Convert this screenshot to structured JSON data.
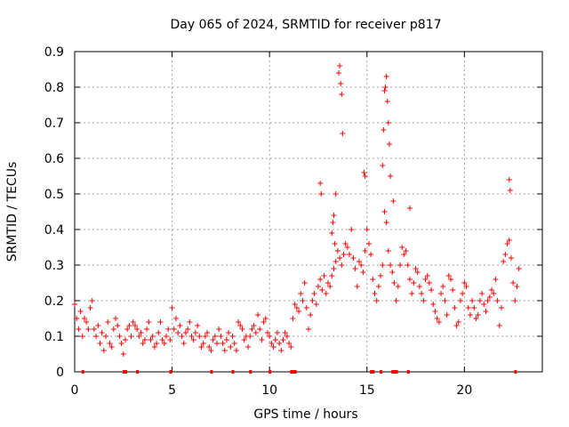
{
  "chart_data": {
    "type": "scatter",
    "title": "Day 065 of 2024, SRMTID for receiver p817",
    "xlabel": "GPS time / hours",
    "ylabel": "SRMTID / TECUs",
    "xlim": [
      0,
      24
    ],
    "ylim": [
      0,
      0.9
    ],
    "grid": true,
    "x_ticks": [
      0,
      5,
      10,
      15,
      20
    ],
    "x_tick_labels": [
      "0",
      "5",
      "10",
      "15",
      "20"
    ],
    "y_ticks": [
      0,
      0.1,
      0.2,
      0.3,
      0.4,
      0.5,
      0.6,
      0.7,
      0.8,
      0.9
    ],
    "y_tick_labels": [
      "0",
      "0.1",
      "0.2",
      "0.3",
      "0.4",
      "0.5",
      "0.6",
      "0.7",
      "0.8",
      "0.9"
    ],
    "marker": "+",
    "series": [
      {
        "name": "SRMTID",
        "color": "#ff0000",
        "x": [
          0.0,
          0.1,
          0.2,
          0.3,
          0.4,
          0.5,
          0.6,
          0.7,
          0.8,
          0.9,
          1.0,
          1.1,
          1.2,
          1.3,
          1.4,
          1.5,
          1.6,
          1.7,
          1.8,
          1.9,
          2.0,
          2.1,
          2.2,
          2.3,
          2.4,
          2.5,
          2.6,
          2.7,
          2.8,
          2.9,
          3.0,
          3.1,
          3.2,
          3.3,
          3.4,
          3.5,
          3.6,
          3.7,
          3.8,
          3.9,
          4.0,
          4.1,
          4.2,
          4.3,
          4.4,
          4.5,
          4.6,
          4.7,
          4.8,
          4.9,
          5.0,
          5.1,
          5.2,
          5.3,
          5.4,
          5.5,
          5.6,
          5.7,
          5.8,
          5.9,
          6.0,
          6.1,
          6.2,
          6.3,
          6.4,
          6.5,
          6.6,
          6.7,
          6.8,
          6.9,
          7.0,
          7.1,
          7.2,
          7.3,
          7.4,
          7.5,
          7.6,
          7.7,
          7.8,
          7.9,
          8.0,
          8.1,
          8.2,
          8.3,
          8.4,
          8.5,
          8.6,
          8.7,
          8.8,
          8.9,
          9.0,
          9.1,
          9.2,
          9.3,
          9.4,
          9.5,
          9.6,
          9.7,
          9.8,
          9.9,
          10.0,
          10.1,
          10.2,
          10.3,
          10.4,
          10.5,
          10.6,
          10.7,
          10.8,
          10.9,
          11.0,
          11.1,
          11.2,
          11.3,
          11.4,
          11.5,
          11.6,
          11.7,
          11.8,
          11.9,
          12.0,
          12.1,
          12.2,
          12.3,
          12.4,
          12.5,
          12.6,
          12.7,
          12.8,
          12.9,
          13.0,
          13.1,
          13.2,
          13.3,
          13.4,
          13.5,
          13.6,
          13.7,
          13.8,
          13.9,
          14.0,
          14.1,
          14.2,
          14.3,
          14.4,
          14.5,
          14.6,
          14.7,
          14.8,
          14.9,
          15.0,
          15.1,
          15.2,
          15.3,
          15.4,
          15.5,
          15.6,
          15.7,
          15.8,
          15.9,
          16.0,
          16.1,
          16.2,
          16.3,
          16.4,
          16.5,
          16.6,
          16.7,
          16.8,
          16.9,
          17.0,
          17.1,
          17.2,
          17.3,
          17.4,
          17.5,
          17.6,
          17.7,
          17.8,
          17.9,
          18.0,
          18.1,
          18.2,
          18.3,
          18.4,
          18.5,
          18.6,
          18.7,
          18.8,
          18.9,
          19.0,
          19.1,
          19.2,
          19.3,
          19.4,
          19.5,
          19.6,
          19.7,
          19.8,
          19.9,
          20.0,
          20.1,
          20.2,
          20.3,
          20.4,
          20.5,
          20.6,
          20.7,
          20.8,
          20.9,
          21.0,
          21.1,
          21.2,
          21.3,
          21.4,
          21.5,
          21.6,
          21.7,
          21.8,
          21.9,
          22.0,
          22.1,
          22.2,
          22.3,
          22.4,
          22.5,
          22.6,
          22.7,
          22.8,
          13.55,
          13.6,
          13.65,
          13.7,
          13.75,
          15.9,
          15.95,
          16.0,
          16.05,
          16.1,
          15.85,
          16.15,
          15.8,
          16.2,
          12.6,
          12.65,
          14.85,
          14.9,
          16.35,
          17.2,
          22.3,
          22.35,
          13.2,
          13.25,
          13.3,
          13.35,
          13.4
        ],
        "y": [
          0.19,
          0.15,
          0.12,
          0.17,
          0.1,
          0.15,
          0.14,
          0.12,
          0.18,
          0.2,
          0.12,
          0.1,
          0.13,
          0.08,
          0.11,
          0.06,
          0.1,
          0.14,
          0.08,
          0.07,
          0.12,
          0.15,
          0.13,
          0.1,
          0.08,
          0.05,
          0.09,
          0.12,
          0.13,
          0.1,
          0.14,
          0.13,
          0.12,
          0.1,
          0.11,
          0.08,
          0.09,
          0.12,
          0.14,
          0.09,
          0.1,
          0.07,
          0.08,
          0.11,
          0.14,
          0.09,
          0.08,
          0.1,
          0.12,
          0.09,
          0.18,
          0.12,
          0.15,
          0.11,
          0.13,
          0.1,
          0.08,
          0.11,
          0.12,
          0.14,
          0.1,
          0.09,
          0.11,
          0.13,
          0.1,
          0.07,
          0.08,
          0.1,
          0.11,
          0.07,
          0.06,
          0.09,
          0.1,
          0.08,
          0.12,
          0.1,
          0.08,
          0.06,
          0.09,
          0.11,
          0.07,
          0.1,
          0.08,
          0.06,
          0.14,
          0.13,
          0.12,
          0.09,
          0.1,
          0.07,
          0.1,
          0.12,
          0.13,
          0.11,
          0.16,
          0.12,
          0.09,
          0.14,
          0.15,
          0.11,
          0.1,
          0.08,
          0.07,
          0.09,
          0.11,
          0.08,
          0.06,
          0.09,
          0.11,
          0.1,
          0.08,
          0.07,
          0.15,
          0.19,
          0.18,
          0.17,
          0.22,
          0.2,
          0.25,
          0.18,
          0.12,
          0.16,
          0.2,
          0.22,
          0.19,
          0.24,
          0.26,
          0.23,
          0.27,
          0.22,
          0.25,
          0.24,
          0.27,
          0.29,
          0.31,
          0.34,
          0.32,
          0.3,
          0.33,
          0.36,
          0.35,
          0.33,
          0.4,
          0.32,
          0.29,
          0.24,
          0.31,
          0.3,
          0.28,
          0.34,
          0.4,
          0.36,
          0.33,
          0.26,
          0.22,
          0.2,
          0.24,
          0.27,
          0.3,
          0.45,
          0.42,
          0.34,
          0.3,
          0.28,
          0.25,
          0.2,
          0.24,
          0.3,
          0.35,
          0.33,
          0.34,
          0.3,
          0.26,
          0.22,
          0.25,
          0.29,
          0.28,
          0.24,
          0.22,
          0.2,
          0.26,
          0.27,
          0.25,
          0.23,
          0.19,
          0.17,
          0.15,
          0.14,
          0.22,
          0.24,
          0.2,
          0.16,
          0.27,
          0.26,
          0.23,
          0.18,
          0.13,
          0.14,
          0.2,
          0.22,
          0.25,
          0.24,
          0.18,
          0.16,
          0.2,
          0.18,
          0.15,
          0.16,
          0.2,
          0.22,
          0.19,
          0.17,
          0.2,
          0.21,
          0.23,
          0.22,
          0.26,
          0.2,
          0.13,
          0.18,
          0.31,
          0.33,
          0.36,
          0.37,
          0.32,
          0.25,
          0.2,
          0.24,
          0.29,
          0.84,
          0.86,
          0.81,
          0.78,
          0.67,
          0.79,
          0.8,
          0.83,
          0.76,
          0.7,
          0.68,
          0.64,
          0.58,
          0.55,
          0.53,
          0.5,
          0.56,
          0.55,
          0.48,
          0.46,
          0.54,
          0.51,
          0.39,
          0.42,
          0.44,
          0.36,
          0.5
        ]
      }
    ],
    "markers_along_x": [
      0.4,
      2.5,
      2.6,
      3.2,
      4.9,
      7.0,
      8.1,
      9.0,
      10.0,
      11.1,
      11.2,
      11.3,
      15.2,
      15.3,
      15.7,
      16.3,
      16.4,
      16.5,
      17.1,
      22.6
    ]
  }
}
